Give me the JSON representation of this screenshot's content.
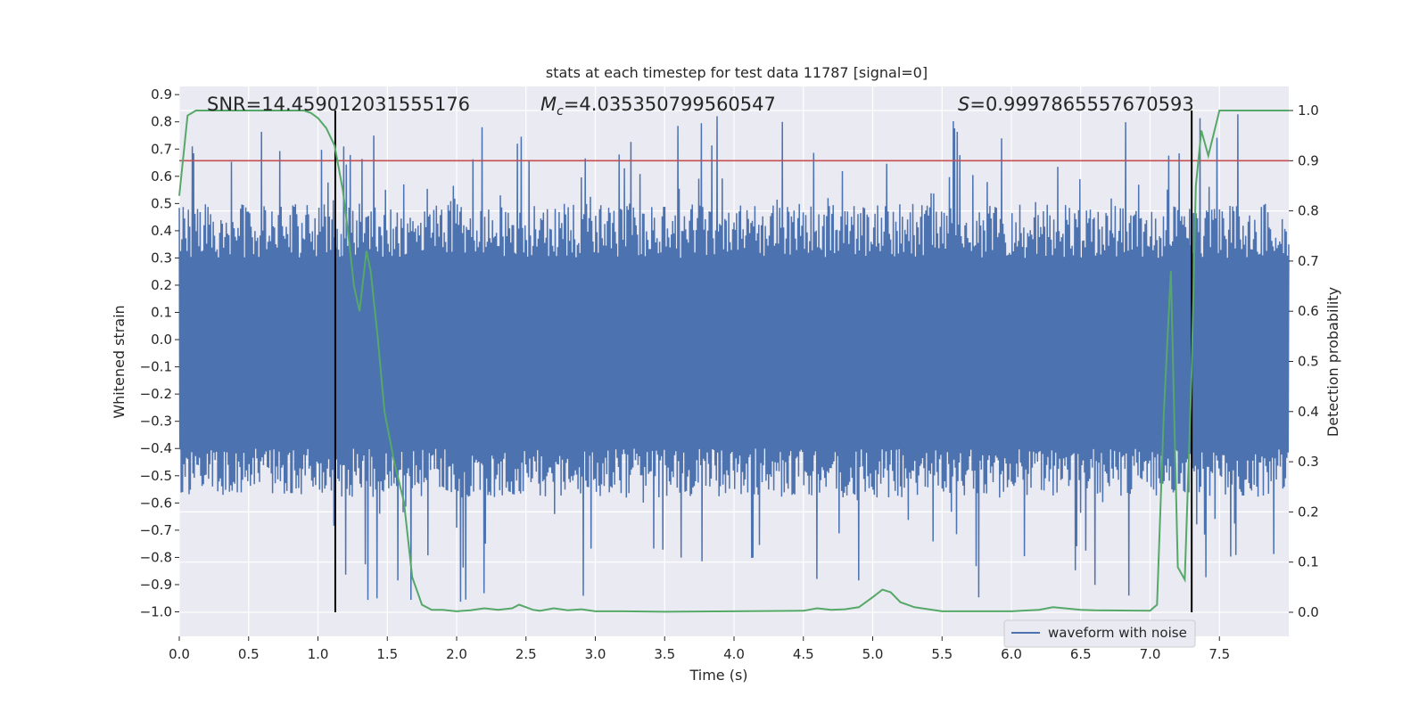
{
  "chart_data": {
    "type": "line",
    "title": "stats at each timestep for test data 11787 [signal=0]",
    "xlabel": "Time (s)",
    "ylabel": "Whitened strain",
    "y2label": "Detection probability",
    "xlim": [
      0.0,
      8.0
    ],
    "ylim": [
      -1.09,
      0.93
    ],
    "y2lim": [
      -0.048,
      1.048
    ],
    "x_ticks": [
      "0.0",
      "0.5",
      "1.0",
      "1.5",
      "2.0",
      "2.5",
      "3.0",
      "3.5",
      "4.0",
      "4.5",
      "5.0",
      "5.5",
      "6.0",
      "6.5",
      "7.0",
      "7.5"
    ],
    "y_ticks": [
      "0.9",
      "0.8",
      "0.7",
      "0.6",
      "0.5",
      "0.4",
      "0.3",
      "0.2",
      "0.1",
      "0.0",
      "−0.1",
      "−0.2",
      "−0.3",
      "−0.4",
      "−0.5",
      "−0.6",
      "−0.7",
      "−0.8",
      "−0.9",
      "−1.0"
    ],
    "y2_ticks": [
      "1.0",
      "0.9",
      "0.8",
      "0.7",
      "0.6",
      "0.5",
      "0.4",
      "0.3",
      "0.2",
      "0.1",
      "0.0"
    ],
    "annotations": {
      "snr": "SNR=14.459012031555176",
      "mc_symbol": "M",
      "mc_sub": "c",
      "mc_value": "=4.035350799560547",
      "s_symbol": "S",
      "s_value": "=0.9997865557670593"
    },
    "legend": {
      "label": "waveform with noise",
      "location": "lower right"
    },
    "threshold_line": {
      "y2": 0.9,
      "color": "#c44e52"
    },
    "vertical_lines": [
      1.125,
      7.3
    ],
    "waveform": {
      "name": "waveform with noise",
      "color": "#4c72b0",
      "x_range": [
        0.0,
        8.0
      ],
      "band": [
        -0.4,
        0.3
      ]
    },
    "series": [
      {
        "name": "detection probability",
        "axis": "right",
        "color": "#55a868",
        "x": [
          0.0,
          0.06,
          0.12,
          0.2,
          0.3,
          0.4,
          0.5,
          0.6,
          0.7,
          0.8,
          0.9,
          0.95,
          1.0,
          1.06,
          1.12,
          1.18,
          1.22,
          1.26,
          1.3,
          1.35,
          1.38,
          1.43,
          1.48,
          1.55,
          1.62,
          1.68,
          1.75,
          1.82,
          1.9,
          2.0,
          2.1,
          2.2,
          2.3,
          2.4,
          2.45,
          2.5,
          2.55,
          2.6,
          2.7,
          2.8,
          2.9,
          3.0,
          3.2,
          3.5,
          4.0,
          4.5,
          4.6,
          4.7,
          4.8,
          4.9,
          5.0,
          5.07,
          5.13,
          5.2,
          5.3,
          5.5,
          6.0,
          6.2,
          6.3,
          6.5,
          6.6,
          7.0,
          7.05,
          7.1,
          7.15,
          7.2,
          7.25,
          7.3,
          7.33,
          7.37,
          7.42,
          7.5,
          7.58,
          7.7,
          7.8,
          8.0
        ],
        "y": [
          0.83,
          0.99,
          1.0,
          1.0,
          1.0,
          1.0,
          1.0,
          1.0,
          1.0,
          1.0,
          1.0,
          0.995,
          0.985,
          0.965,
          0.93,
          0.84,
          0.75,
          0.65,
          0.6,
          0.72,
          0.68,
          0.55,
          0.4,
          0.3,
          0.22,
          0.07,
          0.015,
          0.005,
          0.005,
          0.002,
          0.004,
          0.008,
          0.005,
          0.008,
          0.015,
          0.01,
          0.005,
          0.003,
          0.008,
          0.004,
          0.006,
          0.002,
          0.002,
          0.001,
          0.002,
          0.003,
          0.008,
          0.005,
          0.006,
          0.01,
          0.03,
          0.045,
          0.04,
          0.02,
          0.01,
          0.002,
          0.002,
          0.005,
          0.01,
          0.005,
          0.004,
          0.003,
          0.015,
          0.4,
          0.68,
          0.09,
          0.065,
          0.48,
          0.85,
          0.96,
          0.91,
          1.0,
          1.0,
          1.0,
          1.0,
          1.0
        ]
      }
    ]
  }
}
